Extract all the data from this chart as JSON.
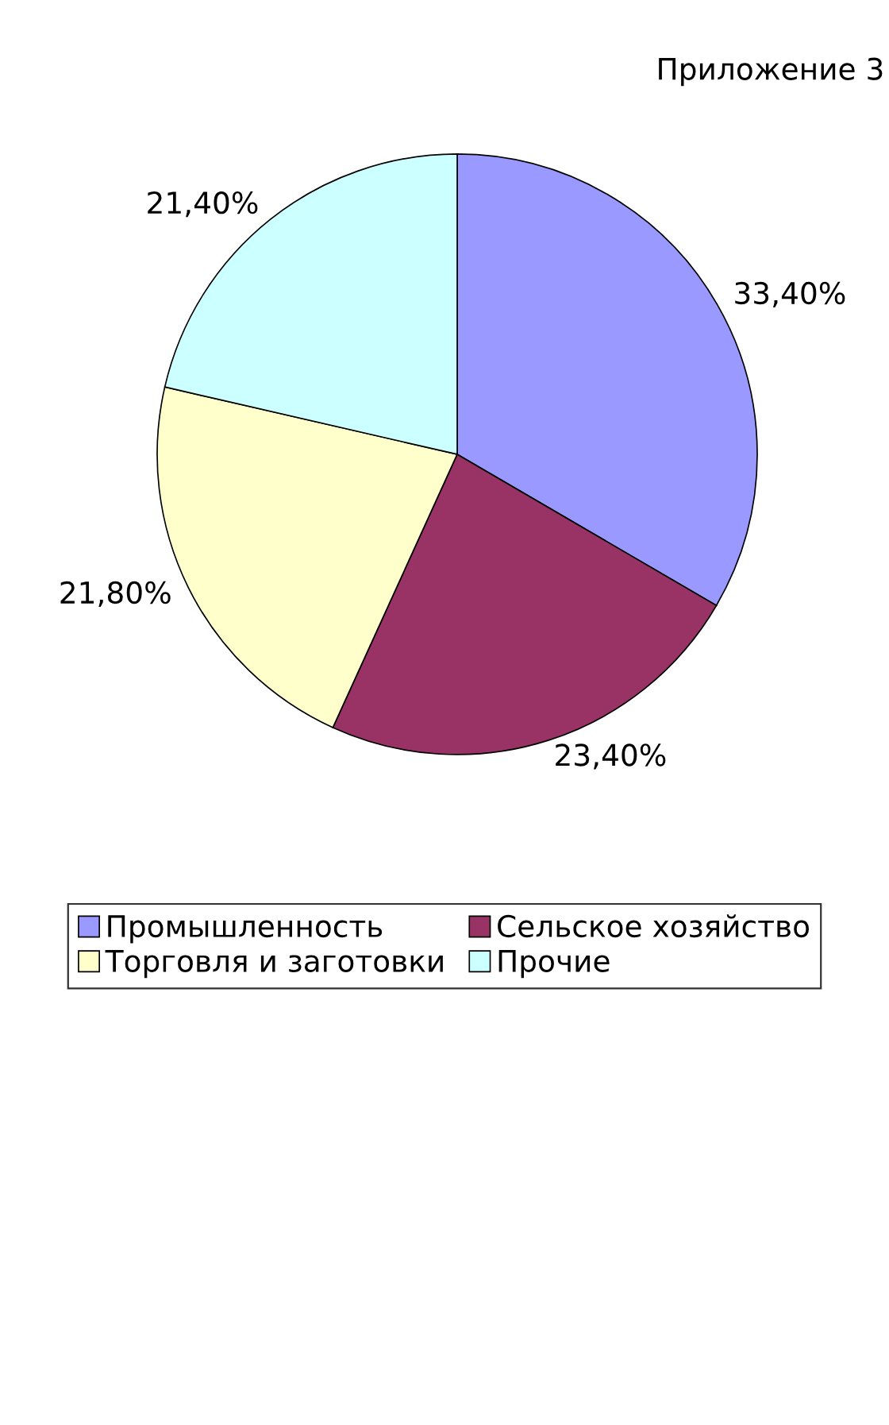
{
  "chart_data": {
    "type": "pie",
    "title": "Приложение 3",
    "categories": [
      "Промышленность",
      "Сельское хозяйство",
      "Торговля и заготовки",
      "Прочие"
    ],
    "values": [
      33.4,
      23.4,
      21.8,
      21.4
    ],
    "value_labels": [
      "33,40%",
      "23,40%",
      "21,80%",
      "21,40%"
    ],
    "colors": [
      "#9999ff",
      "#993366",
      "#ffffcc",
      "#ccffff"
    ],
    "legend": "bottom"
  }
}
